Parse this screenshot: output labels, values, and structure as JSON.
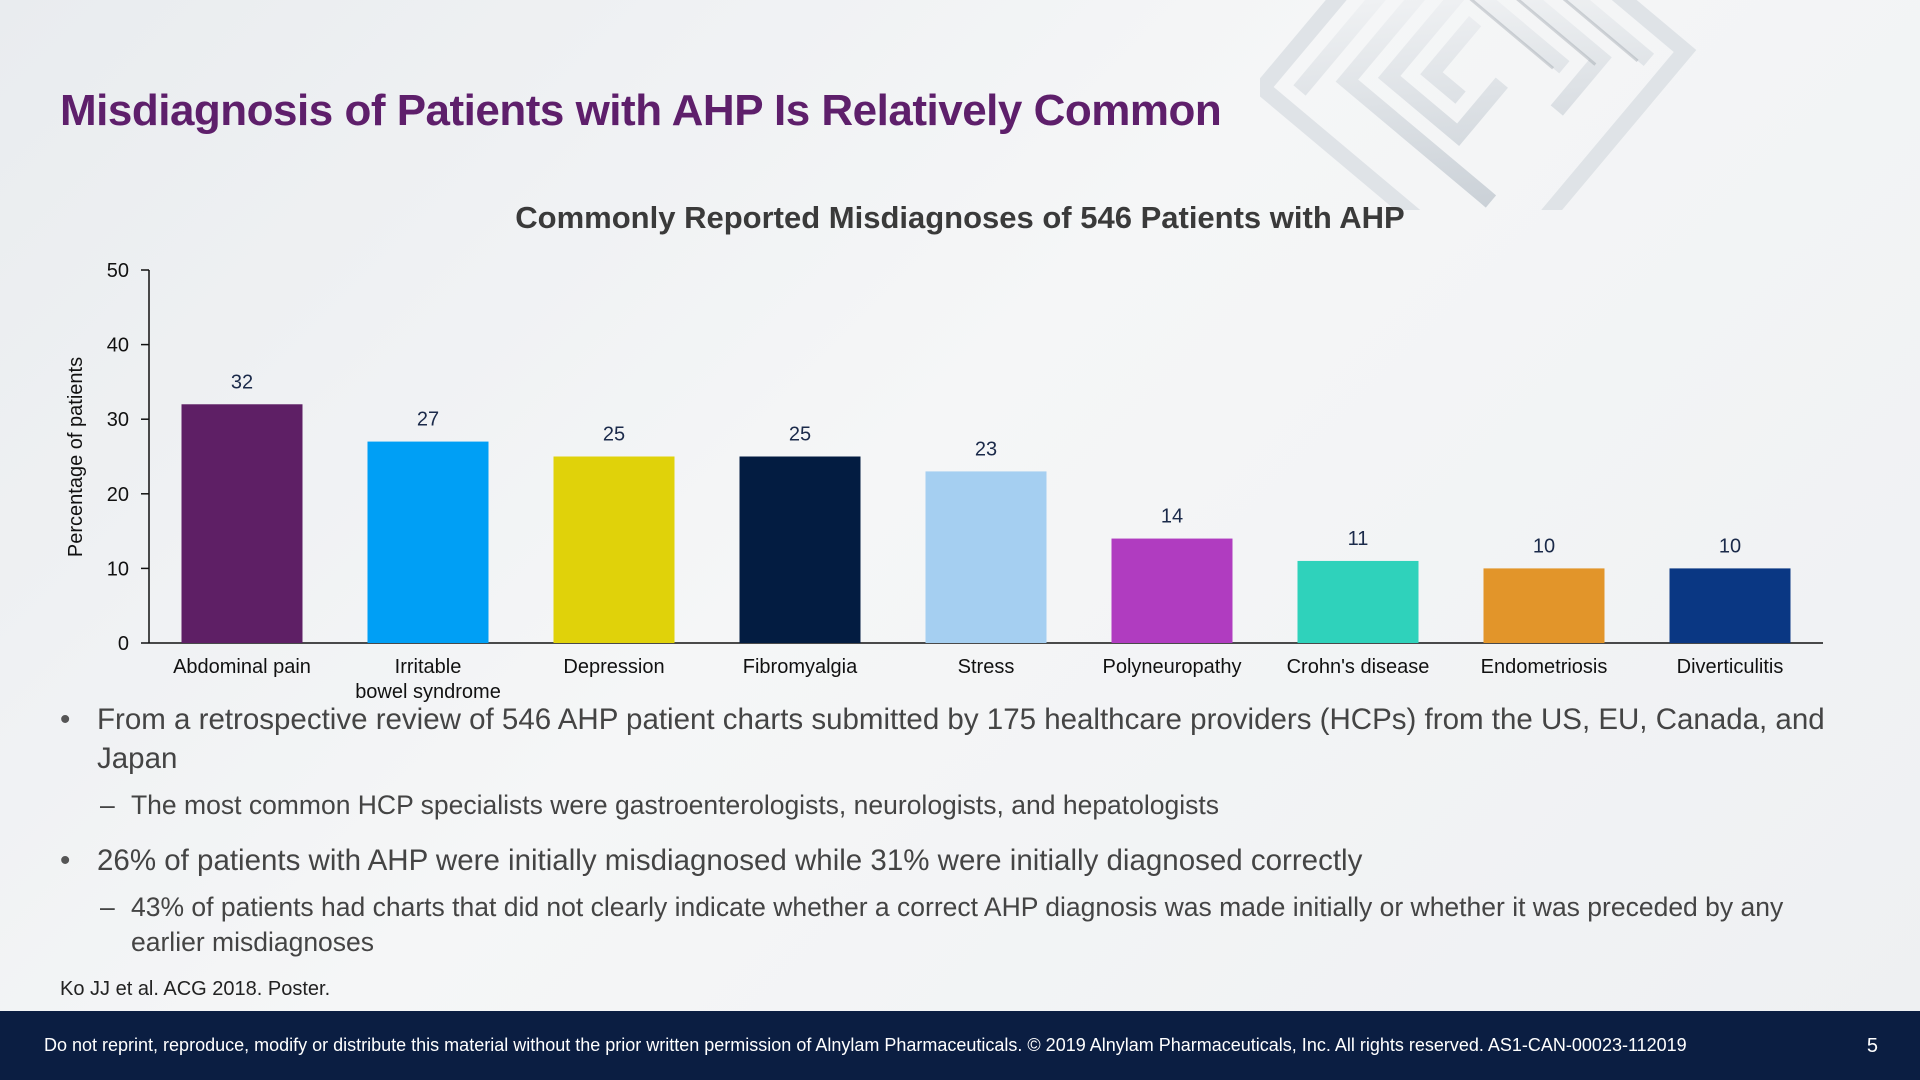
{
  "slide": {
    "title": "Misdiagnosis of Patients with AHP Is Relatively Common",
    "page_number": "5"
  },
  "chart_data": {
    "type": "bar",
    "title": "Commonly Reported Misdiagnoses of 546 Patients with AHP",
    "xlabel": "",
    "ylabel": "Percentage of patients",
    "ylim": [
      0,
      50
    ],
    "yticks": [
      "0",
      "10",
      "20",
      "30",
      "40",
      "50"
    ],
    "grid": false,
    "categories": [
      [
        "Abdominal pain"
      ],
      [
        "Irritable",
        "bowel syndrome"
      ],
      [
        "Depression"
      ],
      [
        "Fibromyalgia"
      ],
      [
        "Stress"
      ],
      [
        "Polyneuropathy"
      ],
      [
        "Crohn's disease"
      ],
      [
        "Endometriosis"
      ],
      [
        "Diverticulitis"
      ]
    ],
    "values": [
      32,
      27,
      25,
      25,
      23,
      14,
      11,
      10,
      10
    ],
    "colors": [
      "#5e1f65",
      "#009ff5",
      "#e0d20a",
      "#031c41",
      "#a5cff1",
      "#b03cc0",
      "#2fd2bb",
      "#e2952a",
      "#0a3783"
    ]
  },
  "bullets": [
    {
      "text": "From a retrospective review of 546 AHP patient charts submitted by 175 healthcare providers (HCPs) from the US, EU, Canada, and Japan",
      "sub": "The most common HCP specialists were gastroenterologists, neurologists, and hepatologists"
    },
    {
      "text": "26% of patients with AHP were initially misdiagnosed while 31% were initially diagnosed correctly",
      "sub": "43% of patients had charts that did not clearly indicate whether a correct AHP diagnosis was made initially or whether it was preceded by any earlier misdiagnoses"
    }
  ],
  "dash": "–",
  "citation": "Ko JJ et al. ACG 2018. Poster.",
  "footer": {
    "disclaimer": "Do not reprint, reproduce, modify or distribute this material without the prior written permission of Alnylam Pharmaceuticals. © 2019 Alnylam Pharmaceuticals, Inc. All rights reserved. AS1-CAN-00023-112019"
  }
}
